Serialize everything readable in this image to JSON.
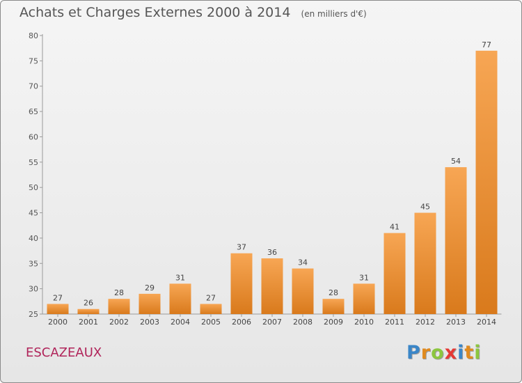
{
  "chart_data": {
    "type": "bar",
    "title": "Achats et Charges Externes 2000 à 2014",
    "unit": "(en milliers d'€)",
    "categories": [
      "2000",
      "2001",
      "2002",
      "2003",
      "2004",
      "2005",
      "2006",
      "2007",
      "2008",
      "2009",
      "2010",
      "2011",
      "2012",
      "2013",
      "2014"
    ],
    "values": [
      27,
      26,
      28,
      29,
      31,
      27,
      37,
      36,
      34,
      28,
      31,
      41,
      45,
      54,
      77
    ],
    "ylim": [
      25,
      80
    ],
    "yticks": [
      25,
      30,
      35,
      40,
      45,
      50,
      55,
      60,
      65,
      70,
      75,
      80
    ],
    "grid": false,
    "bar_color_light": "#f7a654",
    "bar_color_dark": "#d97a1c"
  },
  "footer": {
    "commune": "ESCAZEAUX",
    "logo_letters": [
      "P",
      "r",
      "o",
      "x",
      "i",
      "t",
      "i"
    ],
    "logo_colors": [
      "#3a86c8",
      "#e08a1e",
      "#8cc63f",
      "#e53935",
      "#3a86c8",
      "#e08a1e",
      "#8cc63f"
    ]
  }
}
